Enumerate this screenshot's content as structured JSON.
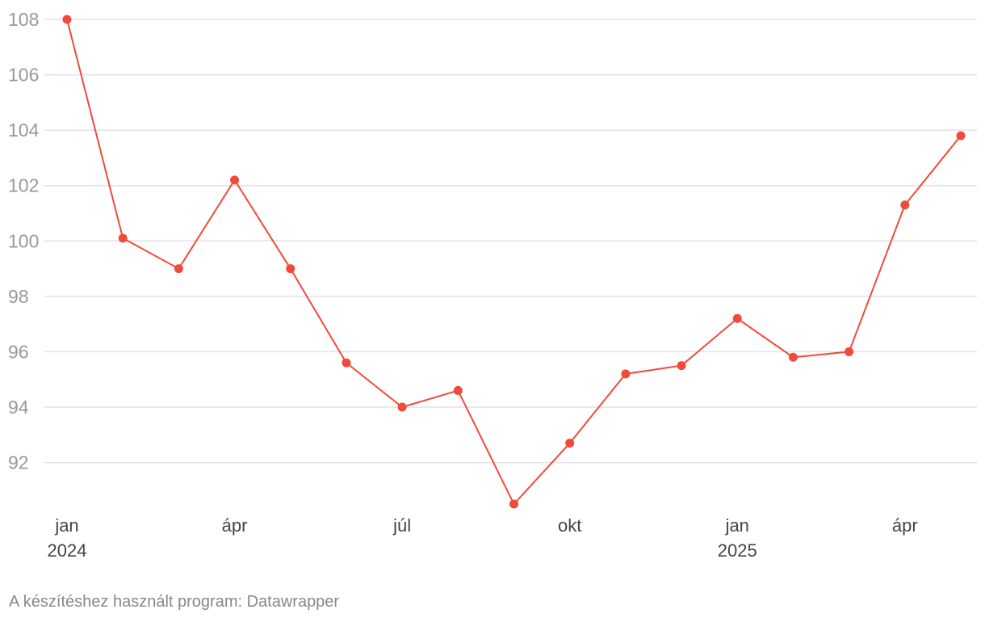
{
  "chart_data": {
    "type": "line",
    "x": [
      "2024-01",
      "2024-02",
      "2024-03",
      "2024-04",
      "2024-05",
      "2024-06",
      "2024-07",
      "2024-08",
      "2024-09",
      "2024-10",
      "2024-11",
      "2024-12",
      "2025-01",
      "2025-02",
      "2025-03",
      "2025-04",
      "2025-05"
    ],
    "series": [
      {
        "color": "#f04a3a",
        "values": [
          108.0,
          100.1,
          99.0,
          102.2,
          99.0,
          95.6,
          94.0,
          94.6,
          90.5,
          92.7,
          95.2,
          95.5,
          97.2,
          95.8,
          96.0,
          101.3,
          103.8
        ]
      }
    ],
    "ylim": [
      90.5,
      108
    ],
    "y_ticks": [
      "108",
      "106",
      "104",
      "102",
      "100",
      "98",
      "96",
      "94",
      "92"
    ],
    "x_ticks": [
      {
        "month": "2024-01",
        "label": "jan",
        "year": "2024"
      },
      {
        "month": "2024-04",
        "label": "ápr"
      },
      {
        "month": "2024-07",
        "label": "júl"
      },
      {
        "month": "2024-10",
        "label": "okt"
      },
      {
        "month": "2025-01",
        "label": "jan",
        "year": "2025"
      },
      {
        "month": "2025-04",
        "label": "ápr"
      }
    ],
    "grid": true,
    "legend": "none",
    "title": "",
    "xlabel": "",
    "ylabel": ""
  },
  "footer": {
    "credit": "A készítéshez használt program: Datawrapper"
  }
}
